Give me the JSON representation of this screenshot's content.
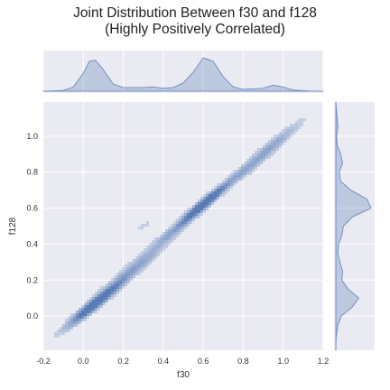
{
  "chart_data": {
    "type": "jointplot-kde",
    "title": [
      "Joint Distribution Between f30 and f128",
      "(Highly Positively Correlated)"
    ],
    "xlabel": "f30",
    "ylabel": "f128",
    "xlim": [
      -0.2,
      1.2
    ],
    "ylim": [
      -0.19,
      1.19
    ],
    "x_ticks": [
      "-0.2",
      "0.0",
      "0.2",
      "0.4",
      "0.6",
      "0.8",
      "1.0",
      "1.2"
    ],
    "y_ticks": [
      "0.0",
      "0.2",
      "0.4",
      "0.6",
      "0.8",
      "1.0"
    ],
    "grid": true,
    "colors": {
      "plot_background": "#eaeaf2",
      "grid": "#ffffff",
      "kde": "#4c72b0"
    },
    "marginal_x": {
      "variable": "f30",
      "x": [
        -0.2,
        -0.1,
        -0.05,
        0.0,
        0.03,
        0.06,
        0.1,
        0.15,
        0.2,
        0.3,
        0.35,
        0.4,
        0.45,
        0.5,
        0.55,
        0.6,
        0.65,
        0.7,
        0.75,
        0.8,
        0.9,
        0.95,
        1.0,
        1.05,
        1.12,
        1.2
      ],
      "density": [
        0.0,
        0.05,
        0.35,
        1.5,
        2.5,
        2.6,
        1.8,
        0.6,
        0.3,
        0.3,
        0.35,
        0.25,
        0.3,
        0.7,
        1.6,
        2.8,
        2.5,
        1.2,
        0.35,
        0.15,
        0.25,
        0.5,
        0.35,
        0.1,
        0.02,
        0.0
      ]
    },
    "marginal_y": {
      "variable": "f128",
      "y": [
        -0.19,
        -0.12,
        -0.05,
        0.0,
        0.05,
        0.1,
        0.15,
        0.2,
        0.25,
        0.3,
        0.35,
        0.4,
        0.45,
        0.5,
        0.55,
        0.6,
        0.65,
        0.7,
        0.75,
        0.8,
        0.85,
        0.9,
        0.95,
        1.0,
        1.05,
        1.1,
        1.19
      ],
      "density": [
        0.0,
        0.02,
        0.15,
        0.4,
        1.2,
        1.7,
        0.9,
        0.45,
        0.5,
        0.3,
        0.15,
        0.2,
        0.45,
        0.55,
        1.2,
        2.6,
        2.3,
        1.1,
        0.35,
        0.25,
        0.5,
        0.35,
        0.1,
        0.05,
        0.15,
        0.1,
        0.0
      ]
    },
    "joint_kde": {
      "components": [
        {
          "x": 0.06,
          "y": 0.07,
          "sx": 0.085,
          "sy": 0.078,
          "rho": 0.96,
          "weight": 1.0
        },
        {
          "x": 0.26,
          "y": 0.27,
          "sx": 0.1,
          "sy": 0.09,
          "rho": 0.95,
          "weight": 0.35
        },
        {
          "x": 0.61,
          "y": 0.63,
          "sx": 0.075,
          "sy": 0.07,
          "rho": 0.96,
          "weight": 1.05
        },
        {
          "x": 0.45,
          "y": 0.47,
          "sx": 0.08,
          "sy": 0.07,
          "rho": 0.95,
          "weight": 0.3
        },
        {
          "x": 0.93,
          "y": 0.93,
          "sx": 0.095,
          "sy": 0.09,
          "rho": 0.96,
          "weight": 0.35
        },
        {
          "x": 0.8,
          "y": 0.8,
          "sx": 0.06,
          "sy": 0.05,
          "rho": 0.9,
          "weight": 0.2
        },
        {
          "x": 0.3,
          "y": 0.5,
          "sx": 0.04,
          "sy": 0.03,
          "rho": 0.8,
          "weight": 0.08
        }
      ],
      "levels": [
        0.09,
        0.17,
        0.26,
        0.36,
        0.47,
        0.58,
        0.69,
        0.79,
        0.88,
        0.95
      ]
    }
  }
}
